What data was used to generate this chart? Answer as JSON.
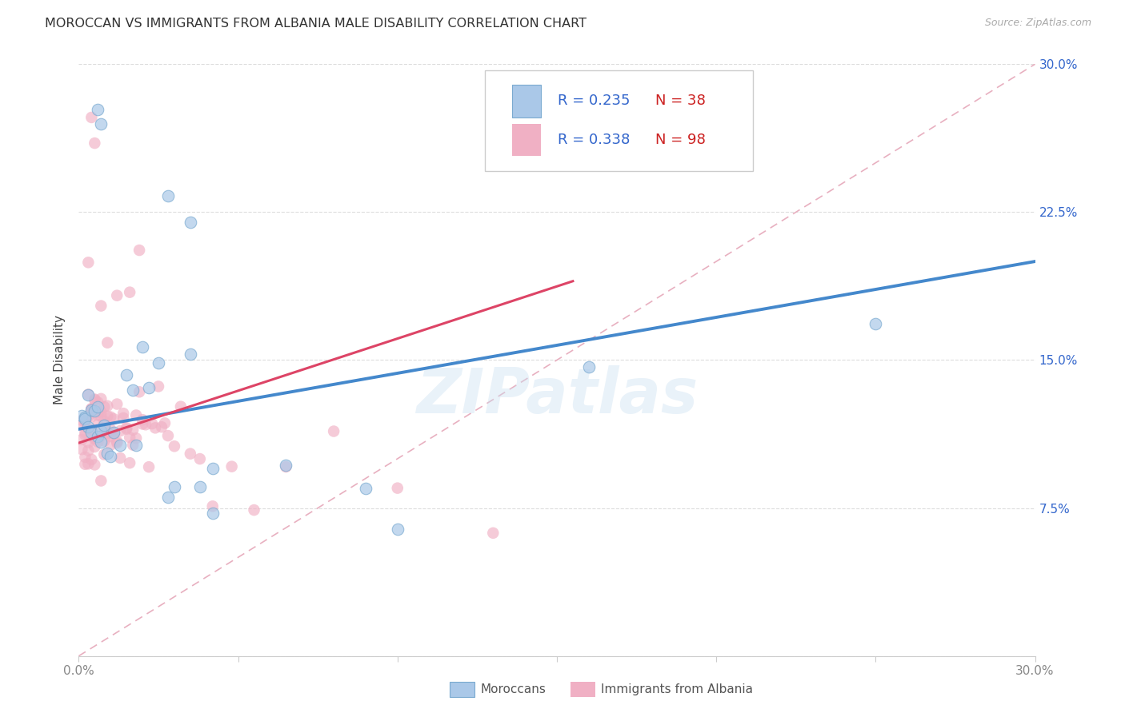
{
  "title": "MOROCCAN VS IMMIGRANTS FROM ALBANIA MALE DISABILITY CORRELATION CHART",
  "source": "Source: ZipAtlas.com",
  "ylabel": "Male Disability",
  "xlim": [
    0.0,
    0.3
  ],
  "ylim": [
    0.0,
    0.3
  ],
  "x_tick_positions": [
    0.0,
    0.05,
    0.1,
    0.15,
    0.2,
    0.25,
    0.3
  ],
  "x_tick_labels": [
    "0.0%",
    "",
    "",
    "",
    "",
    "",
    "30.0%"
  ],
  "y_tick_positions": [
    0.0,
    0.075,
    0.15,
    0.225,
    0.3
  ],
  "y_tick_labels_right": [
    "",
    "7.5%",
    "15.0%",
    "22.5%",
    "30.0%"
  ],
  "color_moroccan_fill": "#aac8e8",
  "color_moroccan_edge": "#7aaad0",
  "color_albania_fill": "#f0b0c4",
  "color_albania_edge": "none",
  "color_blue_line": "#4488cc",
  "color_pink_line": "#dd4466",
  "color_legend_text": "#3366cc",
  "color_diag_line": "#e8b0c0",
  "label_moroccan": "Moroccans",
  "label_albania": "Immigrants from Albania",
  "watermark": "ZIPatlas",
  "blue_line_x": [
    0.0,
    0.3
  ],
  "blue_line_y": [
    0.115,
    0.2
  ],
  "pink_line_x": [
    0.0,
    0.155
  ],
  "pink_line_y": [
    0.108,
    0.19
  ],
  "moroccan_x": [
    0.001,
    0.002,
    0.002,
    0.003,
    0.003,
    0.004,
    0.004,
    0.005,
    0.006,
    0.006,
    0.007,
    0.007,
    0.008,
    0.009,
    0.01,
    0.011,
    0.013,
    0.015,
    0.017,
    0.018,
    0.02,
    0.022,
    0.025,
    0.028,
    0.03,
    0.035,
    0.038,
    0.042,
    0.006,
    0.007,
    0.028,
    0.035,
    0.09,
    0.16,
    0.25,
    0.042,
    0.065,
    0.1
  ],
  "moroccan_y": [
    0.118,
    0.122,
    0.115,
    0.12,
    0.118,
    0.115,
    0.112,
    0.118,
    0.115,
    0.122,
    0.112,
    0.118,
    0.115,
    0.118,
    0.115,
    0.118,
    0.115,
    0.14,
    0.142,
    0.118,
    0.145,
    0.138,
    0.148,
    0.092,
    0.09,
    0.152,
    0.095,
    0.092,
    0.282,
    0.272,
    0.238,
    0.205,
    0.085,
    0.155,
    0.162,
    0.082,
    0.095,
    0.08
  ],
  "albania_x": [
    0.001,
    0.001,
    0.001,
    0.001,
    0.002,
    0.002,
    0.002,
    0.002,
    0.002,
    0.003,
    0.003,
    0.003,
    0.003,
    0.003,
    0.003,
    0.004,
    0.004,
    0.004,
    0.004,
    0.004,
    0.004,
    0.005,
    0.005,
    0.005,
    0.005,
    0.005,
    0.005,
    0.006,
    0.006,
    0.006,
    0.006,
    0.006,
    0.007,
    0.007,
    0.007,
    0.007,
    0.007,
    0.008,
    0.008,
    0.008,
    0.008,
    0.008,
    0.009,
    0.009,
    0.009,
    0.01,
    0.01,
    0.01,
    0.01,
    0.01,
    0.011,
    0.011,
    0.011,
    0.012,
    0.012,
    0.012,
    0.013,
    0.013,
    0.014,
    0.014,
    0.015,
    0.015,
    0.016,
    0.016,
    0.017,
    0.017,
    0.018,
    0.018,
    0.019,
    0.02,
    0.02,
    0.021,
    0.022,
    0.023,
    0.024,
    0.025,
    0.026,
    0.027,
    0.028,
    0.03,
    0.032,
    0.035,
    0.038,
    0.042,
    0.048,
    0.055,
    0.065,
    0.08,
    0.1,
    0.13,
    0.004,
    0.005,
    0.003,
    0.019,
    0.016,
    0.012,
    0.009,
    0.007
  ],
  "albania_y": [
    0.118,
    0.115,
    0.112,
    0.108,
    0.12,
    0.115,
    0.112,
    0.108,
    0.118,
    0.122,
    0.118,
    0.115,
    0.112,
    0.108,
    0.115,
    0.118,
    0.115,
    0.112,
    0.108,
    0.118,
    0.122,
    0.12,
    0.115,
    0.112,
    0.108,
    0.118,
    0.122,
    0.115,
    0.118,
    0.112,
    0.12,
    0.115,
    0.118,
    0.115,
    0.112,
    0.108,
    0.115,
    0.118,
    0.115,
    0.112,
    0.118,
    0.122,
    0.115,
    0.118,
    0.112,
    0.12,
    0.115,
    0.118,
    0.112,
    0.108,
    0.118,
    0.115,
    0.112,
    0.118,
    0.115,
    0.112,
    0.118,
    0.115,
    0.12,
    0.118,
    0.115,
    0.118,
    0.112,
    0.115,
    0.118,
    0.115,
    0.112,
    0.118,
    0.115,
    0.118,
    0.115,
    0.118,
    0.115,
    0.118,
    0.115,
    0.112,
    0.118,
    0.115,
    0.112,
    0.118,
    0.115,
    0.095,
    0.092,
    0.085,
    0.082,
    0.088,
    0.09,
    0.092,
    0.095,
    0.068,
    0.272,
    0.265,
    0.215,
    0.205,
    0.195,
    0.178,
    0.168,
    0.162
  ]
}
